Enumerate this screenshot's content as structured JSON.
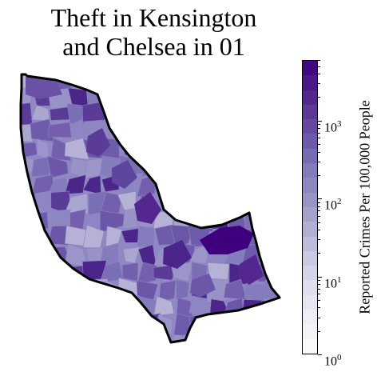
{
  "title_line1": "Theft in Kensington",
  "title_line2": "and Chelsea in 01",
  "colorbar": {
    "label": "Reported Crimes Per 100,000 People",
    "scale": "log",
    "min": 1,
    "max": 6000,
    "ticks": [
      {
        "base": "10",
        "exp": "0",
        "value": 1
      },
      {
        "base": "10",
        "exp": "1",
        "value": 10
      },
      {
        "base": "10",
        "exp": "2",
        "value": 100
      },
      {
        "base": "10",
        "exp": "3",
        "value": 1000
      }
    ],
    "colormap": "Purples",
    "colors": [
      "#fcfbfd",
      "#efedf5",
      "#dadaeb",
      "#bcbddc",
      "#9e9ac8",
      "#807dba",
      "#6a51a3",
      "#54278f",
      "#3f007d"
    ]
  },
  "map": {
    "region": "Kensington and Chelsea",
    "outline_color": "#000000",
    "cell_colors": [
      "#8e86c2",
      "#7a6fb5",
      "#9b95c9",
      "#6b56a8",
      "#a9a6d0",
      "#5a3b98",
      "#857cbd",
      "#b5b2d6",
      "#735fae",
      "#4b2589",
      "#9892c6",
      "#6f5bab"
    ]
  }
}
